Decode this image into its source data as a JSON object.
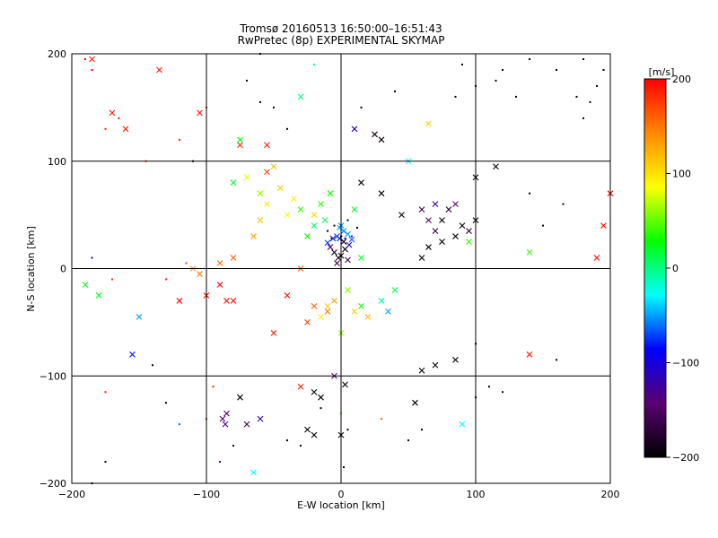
{
  "chart_data": {
    "type": "scatter",
    "title": "Tromsø 20160513 16:50:00–16:51:43",
    "subtitle": "RwPretec (8p) EXPERIMENTAL SKYMAP",
    "xlabel": "E-W location [km]",
    "ylabel": "N-S location [km]",
    "xlim": [
      -200,
      200
    ],
    "ylim": [
      -200,
      200
    ],
    "xticks": [
      -200,
      -100,
      0,
      100,
      200
    ],
    "yticks": [
      -200,
      -100,
      0,
      100,
      200
    ],
    "grid": true,
    "colorbar": {
      "label": "[m/s]",
      "range": [
        -200,
        200
      ],
      "ticks": [
        200,
        100,
        0,
        -100,
        -200
      ],
      "colormap": [
        "#000000",
        "#5a0070",
        "#0000ff",
        "#00ffff",
        "#00ff00",
        "#ffff00",
        "#ff8800",
        "#ff0000"
      ]
    },
    "marker_types": [
      "dot",
      "cross"
    ],
    "points": [
      [
        -5,
        15,
        -200,
        "x"
      ],
      [
        -2,
        10,
        -180,
        "x"
      ],
      [
        3,
        18,
        -190,
        "x"
      ],
      [
        0,
        12,
        -200,
        "x"
      ],
      [
        -8,
        20,
        -150,
        "x"
      ],
      [
        5,
        8,
        -160,
        "x"
      ],
      [
        -3,
        5,
        -170,
        "x"
      ],
      [
        2,
        25,
        -190,
        "x"
      ],
      [
        -1,
        28,
        -120,
        "x"
      ],
      [
        6,
        22,
        -110,
        "x"
      ],
      [
        -3,
        30,
        -70,
        "x"
      ],
      [
        2,
        35,
        -60,
        "x"
      ],
      [
        -6,
        28,
        -80,
        "x"
      ],
      [
        5,
        32,
        -50,
        "x"
      ],
      [
        -1,
        38,
        -40,
        "x"
      ],
      [
        8,
        27,
        -65,
        "x"
      ],
      [
        -10,
        24,
        -75,
        "x"
      ],
      [
        0,
        40,
        -55,
        "x"
      ],
      [
        -12,
        45,
        10,
        "x"
      ],
      [
        -20,
        40,
        5,
        "x"
      ],
      [
        15,
        10,
        20,
        "x"
      ],
      [
        -25,
        30,
        30,
        "x"
      ],
      [
        -15,
        60,
        35,
        "x"
      ],
      [
        -30,
        55,
        40,
        "x"
      ],
      [
        -8,
        70,
        30,
        "x"
      ],
      [
        10,
        55,
        20,
        "x"
      ],
      [
        -40,
        50,
        90,
        "x"
      ],
      [
        -45,
        75,
        110,
        "x"
      ],
      [
        -50,
        95,
        120,
        "x"
      ],
      [
        -55,
        60,
        100,
        "x"
      ],
      [
        -35,
        65,
        95,
        "x"
      ],
      [
        -20,
        50,
        105,
        "x"
      ],
      [
        -60,
        45,
        115,
        "x"
      ],
      [
        -65,
        30,
        130,
        "x"
      ],
      [
        -60,
        70,
        60,
        "x"
      ],
      [
        -70,
        85,
        80,
        "x"
      ],
      [
        -80,
        80,
        20,
        "x"
      ],
      [
        -75,
        120,
        30,
        "x"
      ],
      [
        -110,
        0,
        130,
        "x"
      ],
      [
        -105,
        -5,
        150,
        "x"
      ],
      [
        -90,
        5,
        155,
        "x"
      ],
      [
        -80,
        10,
        160,
        "x"
      ],
      [
        -185,
        195,
        190,
        "x"
      ],
      [
        -170,
        145,
        190,
        "x"
      ],
      [
        -160,
        130,
        185,
        "x"
      ],
      [
        -135,
        185,
        190,
        "x"
      ],
      [
        -105,
        145,
        190,
        "x"
      ],
      [
        -75,
        115,
        185,
        "x"
      ],
      [
        -55,
        115,
        190,
        "x"
      ],
      [
        -55,
        90,
        175,
        "x"
      ],
      [
        -90,
        -15,
        200,
        "x"
      ],
      [
        -85,
        -30,
        190,
        "x"
      ],
      [
        -40,
        -25,
        190,
        "x"
      ],
      [
        -25,
        -50,
        175,
        "x"
      ],
      [
        -120,
        -30,
        200,
        "x"
      ],
      [
        -180,
        -25,
        20,
        "x"
      ],
      [
        -190,
        -15,
        20,
        "x"
      ],
      [
        -150,
        -45,
        -50,
        "x"
      ],
      [
        -155,
        -80,
        -80,
        "x"
      ],
      [
        -5,
        -100,
        -150,
        "x"
      ],
      [
        -20,
        -115,
        -200,
        "x"
      ],
      [
        -15,
        -120,
        -200,
        "x"
      ],
      [
        3,
        -108,
        -200,
        "x"
      ],
      [
        0,
        -155,
        -200,
        "x"
      ],
      [
        -25,
        -150,
        -200,
        "x"
      ],
      [
        -20,
        -155,
        -200,
        "x"
      ],
      [
        -85,
        -135,
        -150,
        "x"
      ],
      [
        -88,
        -140,
        -150,
        "x"
      ],
      [
        -86,
        -145,
        -130,
        "x"
      ],
      [
        -60,
        -140,
        -120,
        "x"
      ],
      [
        -65,
        -190,
        -30,
        "x"
      ],
      [
        -75,
        -120,
        -200,
        "x"
      ],
      [
        -70,
        -145,
        -160,
        "x"
      ],
      [
        10,
        130,
        -110,
        "x"
      ],
      [
        25,
        125,
        -190,
        "x"
      ],
      [
        15,
        80,
        -200,
        "x"
      ],
      [
        30,
        70,
        -200,
        "x"
      ],
      [
        45,
        50,
        -200,
        "x"
      ],
      [
        60,
        55,
        -160,
        "x"
      ],
      [
        65,
        45,
        -150,
        "x"
      ],
      [
        70,
        60,
        -120,
        "x"
      ],
      [
        75,
        45,
        -200,
        "x"
      ],
      [
        80,
        55,
        -180,
        "x"
      ],
      [
        85,
        60,
        -150,
        "x"
      ],
      [
        90,
        40,
        -200,
        "x"
      ],
      [
        95,
        35,
        -180,
        "x"
      ],
      [
        100,
        45,
        -200,
        "x"
      ],
      [
        85,
        30,
        -200,
        "x"
      ],
      [
        70,
        35,
        -170,
        "x"
      ],
      [
        65,
        20,
        -200,
        "x"
      ],
      [
        60,
        10,
        -200,
        "x"
      ],
      [
        75,
        25,
        -190,
        "x"
      ],
      [
        115,
        95,
        -200,
        "x"
      ],
      [
        140,
        -80,
        190,
        "x"
      ],
      [
        55,
        -125,
        -200,
        "x"
      ],
      [
        60,
        -95,
        -200,
        "x"
      ],
      [
        70,
        -90,
        -200,
        "x"
      ],
      [
        85,
        -85,
        -200,
        "x"
      ],
      [
        90,
        -145,
        -30,
        "x"
      ],
      [
        100,
        85,
        -200,
        "x"
      ],
      [
        65,
        135,
        110,
        "x"
      ],
      [
        30,
        120,
        -200,
        "x"
      ],
      [
        95,
        25,
        40,
        "x"
      ],
      [
        140,
        15,
        40,
        "x"
      ],
      [
        50,
        100,
        -30,
        "x"
      ],
      [
        -30,
        160,
        0,
        "x"
      ],
      [
        -80,
        -30,
        190,
        "x"
      ],
      [
        -30,
        -110,
        190,
        "x"
      ],
      [
        10,
        -40,
        110,
        "x"
      ],
      [
        20,
        -45,
        120,
        "x"
      ],
      [
        -10,
        -35,
        110,
        "x"
      ],
      [
        35,
        -40,
        -50,
        "x"
      ],
      [
        -50,
        -60,
        190,
        "x"
      ],
      [
        -100,
        -25,
        190,
        "x"
      ],
      [
        -10,
        -40,
        150,
        "x"
      ],
      [
        -20,
        -35,
        160,
        "x"
      ],
      [
        5,
        -20,
        60,
        "x"
      ],
      [
        -30,
        0,
        160,
        "x"
      ],
      [
        40,
        -20,
        10,
        "x"
      ],
      [
        30,
        -30,
        -10,
        "x"
      ],
      [
        -15,
        -45,
        95,
        "x"
      ],
      [
        0,
        -60,
        60,
        "x"
      ],
      [
        15,
        -35,
        30,
        "x"
      ],
      [
        -5,
        -30,
        130,
        "x"
      ],
      [
        200,
        70,
        200,
        "x"
      ],
      [
        195,
        40,
        200,
        "x"
      ],
      [
        190,
        10,
        200,
        "x"
      ],
      [
        -190,
        195,
        200,
        "d"
      ],
      [
        -185,
        185,
        200,
        "d"
      ],
      [
        -175,
        130,
        190,
        "d"
      ],
      [
        -165,
        140,
        195,
        "d"
      ],
      [
        -145,
        100,
        180,
        "d"
      ],
      [
        -120,
        120,
        190,
        "d"
      ],
      [
        -100,
        150,
        190,
        "d"
      ],
      [
        -70,
        175,
        -200,
        "d"
      ],
      [
        -40,
        130,
        -200,
        "d"
      ],
      [
        -185,
        10,
        -120,
        "d"
      ],
      [
        -130,
        -10,
        190,
        "d"
      ],
      [
        -115,
        5,
        180,
        "d"
      ],
      [
        -170,
        -10,
        180,
        "d"
      ],
      [
        -175,
        -115,
        190,
        "d"
      ],
      [
        -140,
        -90,
        -200,
        "d"
      ],
      [
        -130,
        -125,
        -200,
        "d"
      ],
      [
        -120,
        -145,
        -60,
        "d"
      ],
      [
        -100,
        -140,
        190,
        "d"
      ],
      [
        -95,
        -110,
        190,
        "d"
      ],
      [
        -90,
        -180,
        -130,
        "d"
      ],
      [
        -80,
        -165,
        -200,
        "d"
      ],
      [
        -175,
        -180,
        -200,
        "d"
      ],
      [
        -185,
        -200,
        -200,
        "d"
      ],
      [
        -40,
        -160,
        -200,
        "d"
      ],
      [
        -30,
        -165,
        -200,
        "d"
      ],
      [
        -15,
        -130,
        -200,
        "d"
      ],
      [
        0,
        -135,
        40,
        "d"
      ],
      [
        5,
        -150,
        -200,
        "d"
      ],
      [
        2,
        -185,
        -200,
        "d"
      ],
      [
        30,
        -140,
        160,
        "d"
      ],
      [
        50,
        -160,
        -200,
        "d"
      ],
      [
        60,
        -150,
        -200,
        "d"
      ],
      [
        100,
        -70,
        -200,
        "d"
      ],
      [
        110,
        -110,
        -200,
        "d"
      ],
      [
        100,
        -120,
        -200,
        "d"
      ],
      [
        120,
        -115,
        -200,
        "d"
      ],
      [
        160,
        -85,
        -200,
        "d"
      ],
      [
        140,
        70,
        -200,
        "d"
      ],
      [
        150,
        40,
        -200,
        "d"
      ],
      [
        165,
        60,
        -200,
        "d"
      ],
      [
        175,
        160,
        -200,
        "d"
      ],
      [
        180,
        140,
        -200,
        "d"
      ],
      [
        185,
        155,
        -200,
        "d"
      ],
      [
        190,
        170,
        -200,
        "d"
      ],
      [
        195,
        185,
        -200,
        "d"
      ],
      [
        180,
        195,
        -200,
        "d"
      ],
      [
        160,
        185,
        -200,
        "d"
      ],
      [
        140,
        195,
        -200,
        "d"
      ],
      [
        130,
        160,
        -200,
        "d"
      ],
      [
        115,
        175,
        -200,
        "d"
      ],
      [
        90,
        190,
        -200,
        "d"
      ],
      [
        100,
        170,
        -200,
        "d"
      ],
      [
        120,
        185,
        -200,
        "d"
      ],
      [
        85,
        160,
        -200,
        "d"
      ],
      [
        -60,
        155,
        -200,
        "d"
      ],
      [
        15,
        150,
        -200,
        "d"
      ],
      [
        40,
        165,
        -200,
        "d"
      ],
      [
        -20,
        190,
        0,
        "d"
      ],
      [
        -60,
        200,
        -200,
        "d"
      ],
      [
        -110,
        100,
        -200,
        "d"
      ],
      [
        -50,
        150,
        -200,
        "d"
      ],
      [
        -5,
        40,
        -200,
        "d"
      ],
      [
        5,
        45,
        -200,
        "d"
      ],
      [
        -10,
        35,
        -200,
        "d"
      ],
      [
        12,
        38,
        -200,
        "d"
      ],
      [
        0,
        30,
        -200,
        "d"
      ],
      [
        8,
        30,
        -150,
        "d"
      ],
      [
        -7,
        28,
        -150,
        "d"
      ],
      [
        3,
        28,
        -100,
        "d"
      ]
    ]
  }
}
